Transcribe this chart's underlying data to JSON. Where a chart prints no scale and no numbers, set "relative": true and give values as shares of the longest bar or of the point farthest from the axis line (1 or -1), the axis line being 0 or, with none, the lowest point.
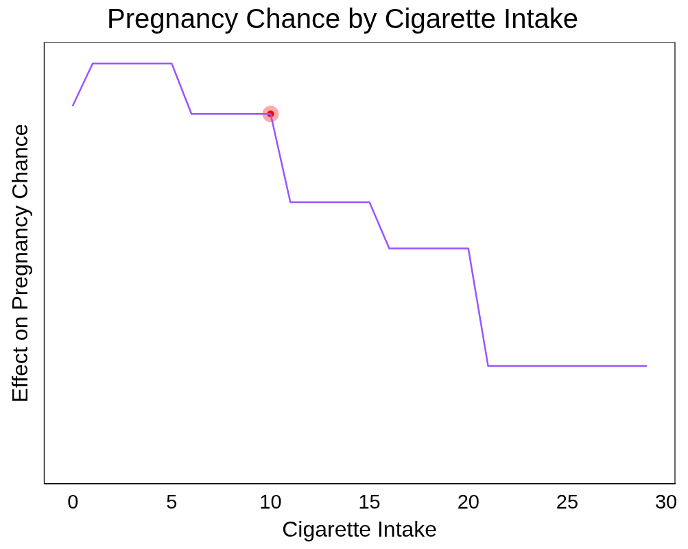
{
  "chart_data": {
    "type": "line",
    "title": "Pregnancy Chance by Cigarette Intake",
    "xlabel": "Cigarette Intake",
    "ylabel": "Effect on Pregnancy Chance",
    "relative": true,
    "xlim": [
      -1.45,
      30.45
    ],
    "xticks": [
      0,
      5,
      10,
      15,
      20,
      25,
      30
    ],
    "grid": false,
    "legend": false,
    "marker": "none",
    "line_style": "solid",
    "series": [
      {
        "color": "#9955ff",
        "x": [
          0,
          1,
          2,
          3,
          4,
          5,
          6,
          7,
          8,
          9,
          10,
          11,
          12,
          13,
          14,
          15,
          16,
          17,
          18,
          19,
          20,
          21,
          22,
          23,
          24,
          25,
          26,
          27,
          28,
          29
        ],
        "values": [
          0.9,
          1,
          1,
          1,
          1,
          1,
          0.88,
          0.88,
          0.88,
          0.88,
          0.88,
          0.67,
          0.67,
          0.67,
          0.67,
          0.67,
          0.56,
          0.56,
          0.56,
          0.56,
          0.56,
          0.28,
          0.28,
          0.28,
          0.28,
          0.28,
          0.28,
          0.28,
          0.28,
          0.28
        ]
      },
      {
        "type": "scatter",
        "color": "#ff0000",
        "marker": "circle",
        "x": [
          10
        ],
        "values": [
          0.88
        ]
      }
    ]
  }
}
